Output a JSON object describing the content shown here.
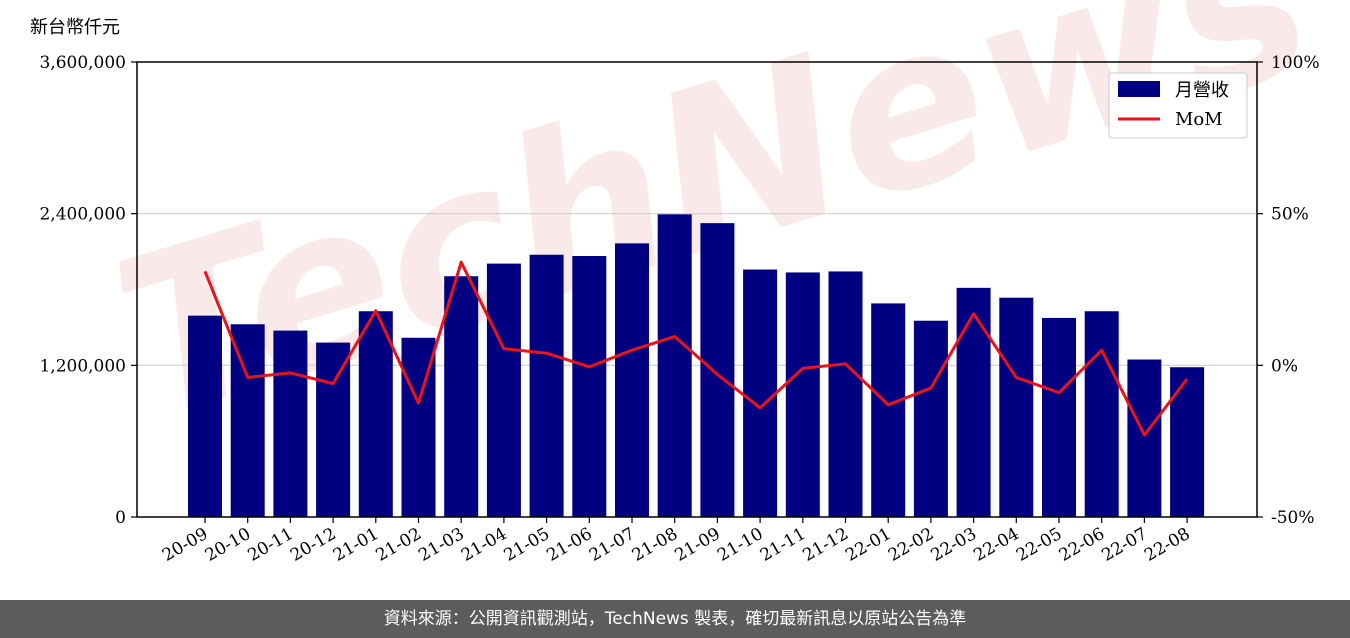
{
  "footer": {
    "source_text": "資料來源：公開資訊觀測站，TechNews 製表，確切最新訊息以原站公告為準"
  },
  "watermark": {
    "text": "TechNews"
  },
  "colors": {
    "bar": "#000080",
    "line": "#e8141a",
    "grid": "#cfcfcf"
  },
  "chart_data": {
    "type": "bar",
    "unit_label": "新台幣仟元",
    "categories": [
      "20-09",
      "20-10",
      "20-11",
      "20-12",
      "21-01",
      "21-02",
      "21-03",
      "21-04",
      "21-05",
      "21-06",
      "21-07",
      "21-08",
      "21-09",
      "21-10",
      "21-11",
      "21-12",
      "22-01",
      "22-02",
      "22-03",
      "22-04",
      "22-05",
      "22-06",
      "22-07",
      "22-08"
    ],
    "series": [
      {
        "name": "月營收",
        "type": "bar",
        "axis": "left",
        "values": [
          1593000,
          1525000,
          1475000,
          1380000,
          1628000,
          1418000,
          1905000,
          2005000,
          2075000,
          2065000,
          2165000,
          2395000,
          2325000,
          1958000,
          1935000,
          1943000,
          1690000,
          1553000,
          1813000,
          1735000,
          1575000,
          1628000,
          1246000,
          1185000
        ]
      },
      {
        "name": "MoM",
        "type": "line",
        "axis": "right",
        "values": [
          31,
          -4,
          -2.5,
          -6,
          18,
          -12.5,
          34,
          5.5,
          4,
          -0.5,
          5,
          9.5,
          -3,
          -14,
          -1,
          0.5,
          -13,
          -7.5,
          17,
          -4,
          -9,
          5,
          -23,
          -4.5
        ]
      }
    ],
    "y_left": {
      "range": [
        0,
        3600000
      ],
      "ticks": [
        "0",
        "1,200,000",
        "2,400,000",
        "3,600,000"
      ]
    },
    "y_right": {
      "range": [
        -50,
        100
      ],
      "ticks": [
        "-50%",
        "0%",
        "50%",
        "100%"
      ]
    },
    "grid": "horizontal",
    "legend_position": "top-right"
  }
}
